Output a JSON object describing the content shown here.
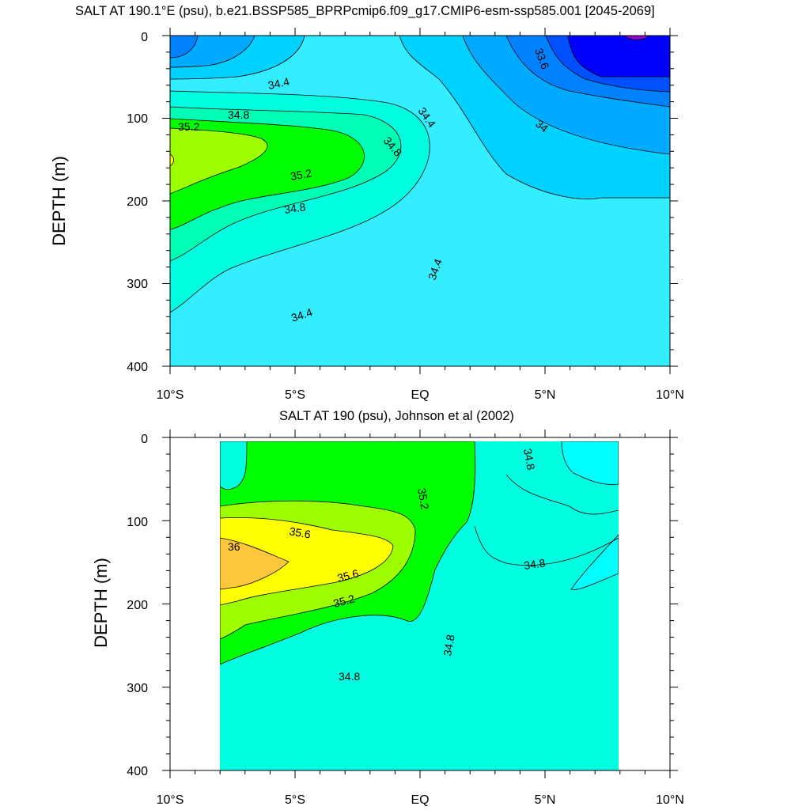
{
  "chart_data": [
    {
      "type": "contour",
      "title": "SALT AT 190.1°E (psu), b.e21.BSSP585_BPRPcmip6.f09_g17.CMIP6-esm-ssp585.001 [2045-2069]",
      "xlabel": "",
      "ylabel": "DEPTH (m)",
      "x_ticks": [
        "10°S",
        "5°S",
        "EQ",
        "5°N",
        "10°N"
      ],
      "y_ticks": [
        "0",
        "100",
        "200",
        "300",
        "400"
      ],
      "xlim": [
        -10,
        10
      ],
      "ylim": [
        400,
        0
      ],
      "grid": false,
      "contour_labels": [
        "34.4",
        "34.8",
        "35.2",
        "35.2",
        "34.8",
        "34.8",
        "34.4",
        "34.4",
        "34.4",
        "34",
        "33.6"
      ],
      "colors": {
        "c33_4": "#0000ff",
        "c33_6": "#0050ff",
        "c33_8": "#0082ff",
        "c34_0": "#00aaff",
        "c34_2": "#00d2ff",
        "c34_4": "#32eeff",
        "c34_6": "#00ffe0",
        "c34_8": "#00ffb4",
        "c35_0": "#00ff00",
        "c35_2": "#9eff00",
        "c35_4": "#ffff00",
        "c36": "#ffc83c",
        "purple": "#9600cc"
      }
    },
    {
      "type": "contour",
      "title": "SALT AT 190 (psu), Johnson et al (2002)",
      "xlabel": "",
      "ylabel": "DEPTH (m)",
      "x_ticks": [
        "10°S",
        "5°S",
        "EQ",
        "5°N",
        "10°N"
      ],
      "y_ticks": [
        "0",
        "100",
        "200",
        "300",
        "400"
      ],
      "xlim": [
        -10,
        10
      ],
      "ylim": [
        400,
        0
      ],
      "data_xrange": [
        -8,
        8
      ],
      "grid": false,
      "contour_labels": [
        "35.6",
        "36",
        "35.6",
        "35.2",
        "35.2",
        "34.8",
        "34.8",
        "34.8",
        "34.8"
      ]
    }
  ]
}
